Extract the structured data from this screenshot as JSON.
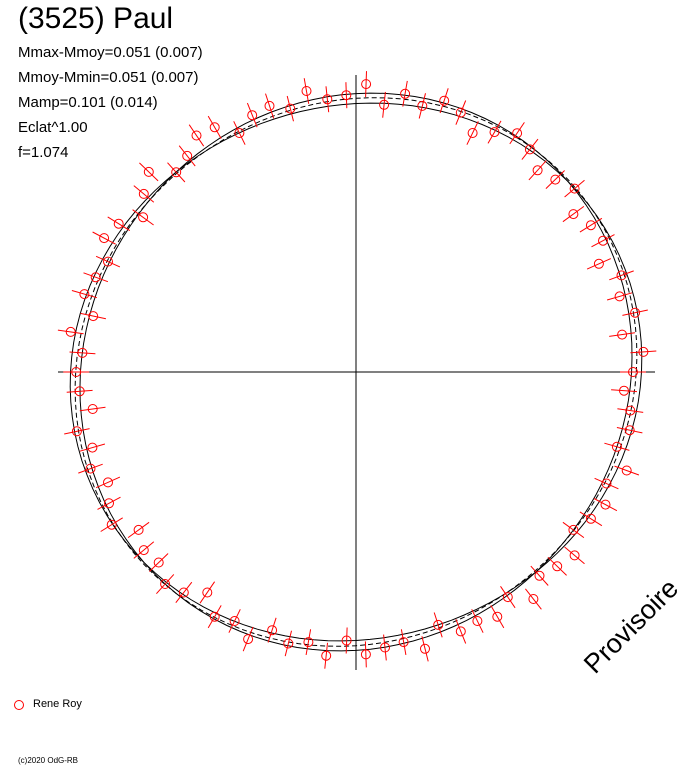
{
  "header": {
    "title": "(3525) Paul",
    "stats": [
      "Mmax-Mmoy=0.051 (0.007)",
      "Mmoy-Mmin=0.051 (0.007)",
      "Mamp=0.101 (0.014)",
      "Eclat^1.00",
      "f=1.074"
    ]
  },
  "watermark": "Provisoire",
  "legend": {
    "label": "Rene Roy",
    "color": "#ff0000"
  },
  "copyright": "(c)2020 OdG-RB",
  "colors": {
    "axes": "#000000",
    "points": "#ff0000",
    "curves": "#000000"
  },
  "chart_data": {
    "type": "scatter",
    "coordinate_system": "polar",
    "title": "(3525) Paul",
    "series": [
      {
        "name": "Rene Roy",
        "angle_deg": [
          0,
          4,
          8,
          12,
          16,
          20,
          24,
          28,
          32,
          36,
          40,
          44,
          48,
          52,
          56,
          60,
          64,
          68,
          72,
          76,
          80,
          84,
          88,
          92,
          96,
          100,
          104,
          108,
          112,
          116,
          120,
          124,
          128,
          132,
          136,
          140,
          144,
          148,
          152,
          156,
          160,
          164,
          168,
          172,
          176,
          180,
          184,
          188,
          192,
          196,
          200,
          204,
          208,
          212,
          216,
          220,
          224,
          228,
          232,
          236,
          240,
          244,
          248,
          252,
          256,
          260,
          264,
          268,
          272,
          276,
          280,
          284,
          288,
          292,
          296,
          300,
          304,
          308,
          312,
          316,
          320,
          324,
          328,
          332,
          336,
          340,
          344,
          348,
          352,
          356
        ],
        "radius": [
          1.0,
          1.04,
          0.97,
          1.03,
          0.99,
          1.02,
          0.96,
          1.01,
          1.0,
          0.97,
          1.03,
          1.0,
          0.98,
          1.02,
          1.04,
          1.0,
          0.96,
          1.01,
          1.03,
          0.99,
          1.02,
          0.97,
          1.04,
          1.0,
          0.99,
          1.03,
          0.98,
          1.01,
          1.0,
          0.96,
          1.02,
          1.03,
          0.99,
          0.97,
          1.04,
          1.0,
          0.95,
          1.01,
          1.03,
          0.98,
          1.0,
          1.02,
          0.97,
          1.04,
          0.99,
          1.01,
          1.0,
          0.96,
          1.03,
          0.99,
          1.02,
          0.98,
          1.01,
          1.04,
          0.97,
          1.0,
          0.99,
          1.03,
          1.01,
          0.96,
          1.02,
          1.0,
          1.04,
          0.98,
          1.01,
          0.99,
          1.03,
          0.97,
          1.02,
          1.0,
          0.99,
          1.03,
          0.96,
          1.01,
          1.0,
          1.02,
          0.98,
          1.04,
          0.99,
          1.01,
          1.03,
          0.97,
          1.0,
          1.02,
          0.99,
          1.04,
          0.98,
          1.01,
          1.0,
          0.97
        ]
      }
    ],
    "curves": [
      {
        "style": "solid",
        "amplitude": 0.04,
        "phase_deg": 20
      },
      {
        "style": "solid",
        "amplitude": 0.03,
        "phase_deg": 50
      },
      {
        "style": "dashed",
        "amplitude": 0.035,
        "phase_deg": 35
      }
    ]
  }
}
